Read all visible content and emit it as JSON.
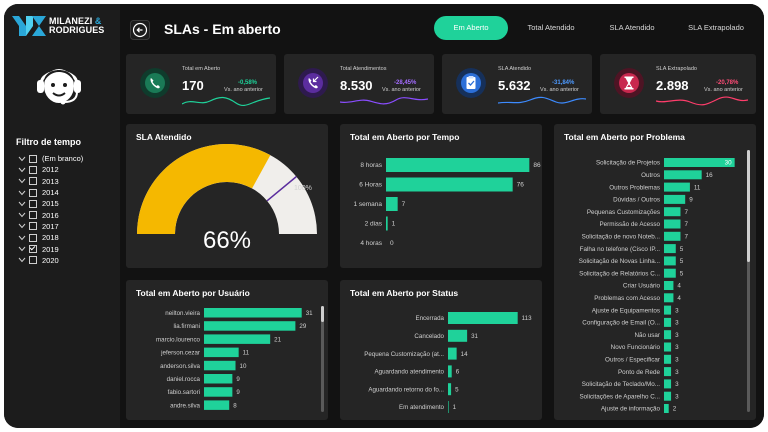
{
  "brand": {
    "line1": "MILANEZI",
    "amp": "&",
    "line2": "RODRIGUES"
  },
  "header": {
    "title": "SLAs - Em aberto"
  },
  "nav": [
    {
      "label": "Em Aberto",
      "active": true
    },
    {
      "label": "Total Atendido",
      "active": false
    },
    {
      "label": "SLA Atendido",
      "active": false
    },
    {
      "label": "SLA Extrapolado",
      "active": false
    }
  ],
  "filter": {
    "title": "Filtro de tempo",
    "items": [
      {
        "label": "(Em branco)",
        "checked": false
      },
      {
        "label": "2012",
        "checked": false
      },
      {
        "label": "2013",
        "checked": false
      },
      {
        "label": "2014",
        "checked": false
      },
      {
        "label": "2015",
        "checked": false
      },
      {
        "label": "2016",
        "checked": false
      },
      {
        "label": "2017",
        "checked": false
      },
      {
        "label": "2018",
        "checked": false
      },
      {
        "label": "2019",
        "checked": true
      },
      {
        "label": "2020",
        "checked": false
      }
    ]
  },
  "kpis": [
    {
      "label": "Total em Aberto",
      "value": "170",
      "delta": "-0,58%",
      "vs": "Vs. ano anterior",
      "icon": "phone-icon",
      "icon_color": "#1a7a56",
      "icon_bg": "#0f3b2c",
      "delta_color": "#1fd29a",
      "line_color": "#1fd29a"
    },
    {
      "label": "Total Atendimentos",
      "value": "8.530",
      "delta": "-28,45%",
      "vs": "Vs. ano anterior",
      "icon": "incoming-call-icon",
      "icon_color": "#5b2d9e",
      "icon_bg": "#2e1a4e",
      "delta_color": "#a36bff",
      "line_color": "#8a4dff"
    },
    {
      "label": "SLA Atendido",
      "value": "5.632",
      "delta": "-31,84%",
      "vs": "Vs. ano anterior",
      "icon": "clipboard-check-icon",
      "icon_color": "#2c6fd8",
      "icon_bg": "#16305a",
      "delta_color": "#4d9aff",
      "line_color": "#3d8bff"
    },
    {
      "label": "SLA Extrapolado",
      "value": "2.898",
      "delta": "-20,78%",
      "vs": "Vs. ano anterior",
      "icon": "hourglass-icon",
      "icon_color": "#c8284e",
      "icon_bg": "#4e1424",
      "delta_color": "#ff4d77",
      "line_color": "#ff3d6b"
    }
  ],
  "gauge": {
    "title": "SLA Atendido",
    "value": 66,
    "value_label": "66%",
    "max_label": "100%",
    "fill_color": "#f5b800",
    "rest_color": "#f0eeeb",
    "target_color": "#5b2d9e"
  },
  "panels": {
    "tempo": {
      "title": "Total em Aberto por Tempo"
    },
    "problema": {
      "title": "Total em Aberto por Problema"
    },
    "usuario": {
      "title": "Total em Aberto por Usuário"
    },
    "status": {
      "title": "Total em Aberto por Status"
    }
  },
  "chart_data": [
    {
      "type": "bar",
      "orientation": "horizontal",
      "title": "Total em Aberto por Tempo",
      "categories": [
        "8 horas",
        "6 Horas",
        "1 semana",
        "2 dias",
        "4 horas"
      ],
      "values": [
        86,
        76,
        7,
        1,
        0
      ],
      "labels": [
        "86",
        "76",
        "7",
        "1",
        "0"
      ],
      "max": 90,
      "color": "#1fd29a"
    },
    {
      "type": "bar",
      "orientation": "horizontal",
      "title": "Total em Aberto por Problema",
      "categories": [
        "Solicitação de Projetos",
        "Outros",
        "Outros Problemas",
        "Dúvidas / Outros",
        "Pequenas Customizações",
        "Permissão de Acesso",
        "Solicitação de novo Noteb...",
        "Falha no telefone (Cisco IP...",
        "Solicitação de Novas Linha...",
        "Solicitação de Relatórios C...",
        "Criar Usuário",
        "Problemas com Acesso",
        "Ajuste de Equipamentos",
        "Configuração de Email (O...",
        "Não usar",
        "Novo Funcionário",
        "Outros / Especificar",
        "Ponto de Rede",
        "Solicitação de Teclado/Mo...",
        "Solicitações de Aparelho C...",
        "Ajuste de informação"
      ],
      "values": [
        30,
        16,
        11,
        9,
        7,
        7,
        7,
        5,
        5,
        5,
        4,
        4,
        3,
        3,
        3,
        3,
        3,
        3,
        3,
        3,
        2
      ],
      "labels": [
        "30",
        "16",
        "11",
        "9",
        "7",
        "7",
        "7",
        "5",
        "5",
        "5",
        "4",
        "4",
        "3",
        "3",
        "3",
        "3",
        "3",
        "3",
        "3",
        "3",
        "2"
      ],
      "max": 31,
      "color": "#1fd29a"
    },
    {
      "type": "bar",
      "orientation": "horizontal",
      "title": "Total em Aberto por Usuário",
      "categories": [
        "neilton.vieira",
        "lia.firmani",
        "marcio.lourenco",
        "jeferson.cezar",
        "anderson.silva",
        "daniel.rocca",
        "fabio.sartori",
        "andre.silva"
      ],
      "values": [
        31,
        29,
        21,
        11,
        10,
        9,
        9,
        8
      ],
      "labels": [
        "31",
        "29",
        "21",
        "11",
        "10",
        "9",
        "9",
        "8"
      ],
      "max": 33,
      "color": "#1fd29a"
    },
    {
      "type": "bar",
      "orientation": "horizontal",
      "title": "Total em Aberto por Status",
      "categories": [
        "Encerrada",
        "Cancelado",
        "Pequena Customização (at...",
        "Aguardando atendimento",
        "Aguardando retorno do fo...",
        "Em atendimento"
      ],
      "values": [
        113,
        31,
        14,
        6,
        5,
        1
      ],
      "labels": [
        "113",
        "31",
        "14",
        "6",
        "5",
        "1"
      ],
      "max": 120,
      "color": "#1fd29a"
    }
  ]
}
